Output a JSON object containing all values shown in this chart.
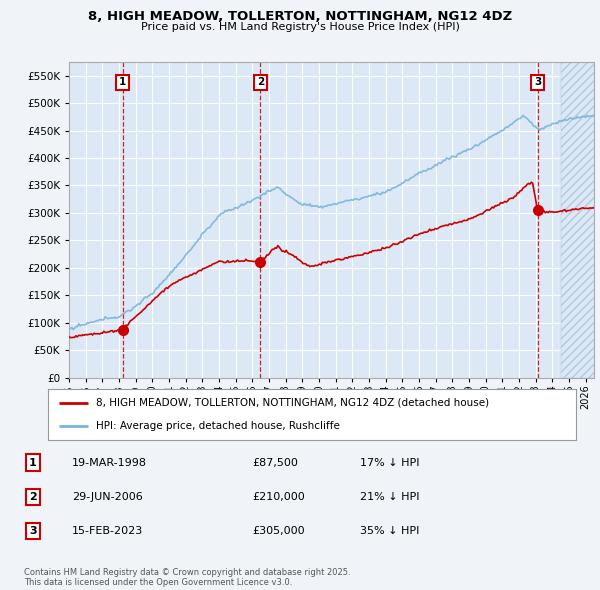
{
  "title": "8, HIGH MEADOW, TOLLERTON, NOTTINGHAM, NG12 4DZ",
  "subtitle": "Price paid vs. HM Land Registry's House Price Index (HPI)",
  "bg_color": "#f0f4f8",
  "plot_bg_color": "#dce8f5",
  "grid_color": "#ffffff",
  "red_color": "#cc0000",
  "blue_color": "#7ab4d8",
  "ylim": [
    0,
    575000
  ],
  "yticks": [
    0,
    50000,
    100000,
    150000,
    200000,
    250000,
    300000,
    350000,
    400000,
    450000,
    500000,
    550000
  ],
  "sale1_date": 1998.22,
  "sale1_price": 87500,
  "sale1_label": "1",
  "sale2_date": 2006.49,
  "sale2_price": 210000,
  "sale2_label": "2",
  "sale3_date": 2023.12,
  "sale3_price": 305000,
  "sale3_label": "3",
  "legend_line1": "8, HIGH MEADOW, TOLLERTON, NOTTINGHAM, NG12 4DZ (detached house)",
  "legend_line2": "HPI: Average price, detached house, Rushcliffe",
  "table_data": [
    [
      "1",
      "19-MAR-1998",
      "£87,500",
      "17% ↓ HPI"
    ],
    [
      "2",
      "29-JUN-2006",
      "£210,000",
      "21% ↓ HPI"
    ],
    [
      "3",
      "15-FEB-2023",
      "£305,000",
      "35% ↓ HPI"
    ]
  ],
  "footer": "Contains HM Land Registry data © Crown copyright and database right 2025.\nThis data is licensed under the Open Government Licence v3.0."
}
